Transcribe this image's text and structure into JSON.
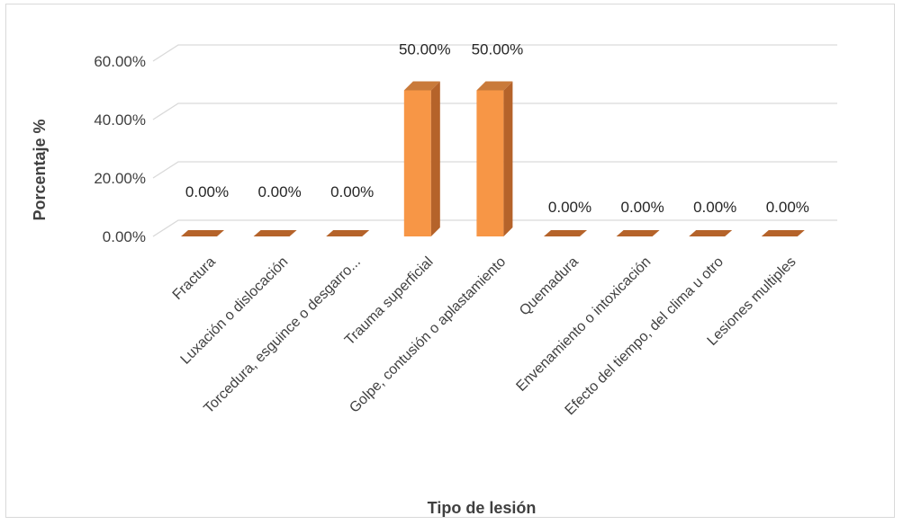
{
  "chart_data": {
    "type": "bar",
    "style": "3d-column",
    "title": "",
    "xlabel": "Tipo de lesión",
    "ylabel": "Porcentaje %",
    "ylim": [
      0,
      60
    ],
    "yticks": [
      "0.00%",
      "20.00%",
      "40.00%",
      "60.00%"
    ],
    "grid": true,
    "legend": "none",
    "categories": [
      "Fractura",
      "Luxación o dislocación",
      "Torcedura, esguince o desgarro...",
      "Trauma superficial",
      "Golpe, contusión o aplastamiento",
      "Quemadura",
      "Envenamiento o intoxicación",
      "Efecto del tiempo, del clima u otro",
      "Lesiones multiples"
    ],
    "values": [
      0,
      0,
      0,
      50,
      50,
      0,
      0,
      0,
      0
    ],
    "data_labels": [
      "0.00%",
      "0.00%",
      "0.00%",
      "50.00%",
      "50.00%",
      "0.00%",
      "0.00%",
      "0.00%",
      "0.00%"
    ],
    "colors": {
      "bar_front": "#F79646",
      "bar_side": "#B5632A",
      "bar_top": "#C97A3A",
      "grid": "#d9d9d9"
    }
  }
}
